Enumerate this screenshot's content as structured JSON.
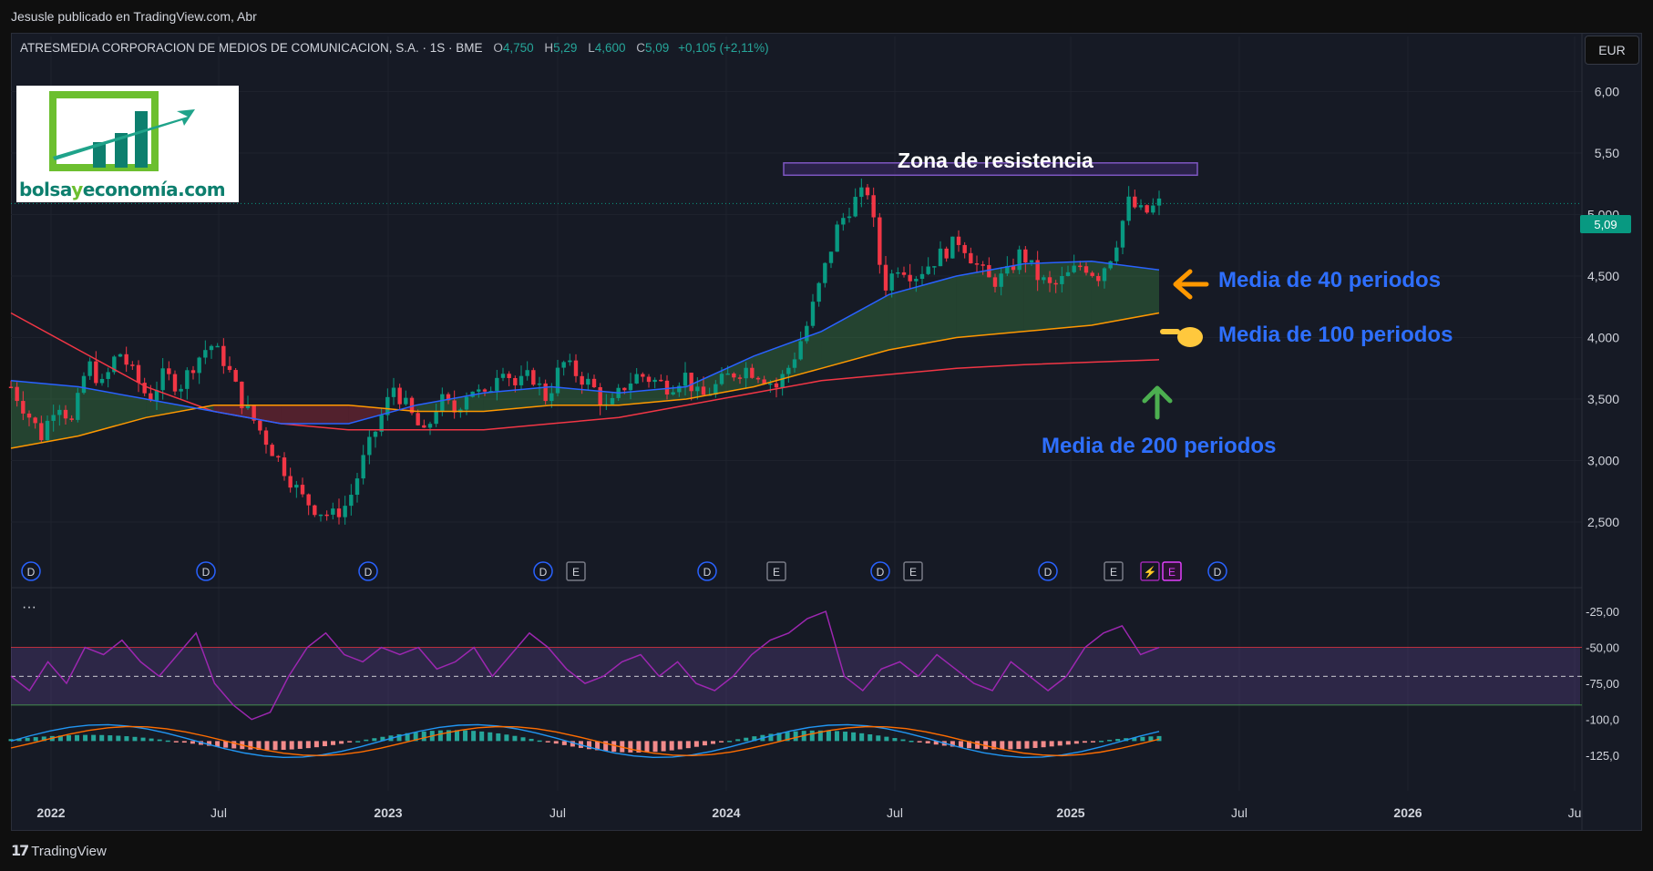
{
  "topline": "Jesusle publicado en TradingView.com, Abr",
  "legend": {
    "symbol": "ATRESMEDIA CORPORACION DE MEDIOS DE COMUNICACION, S.A. · 1S · BME",
    "o_key": "O",
    "o": "4,750",
    "h_key": "H",
    "h": "5,29",
    "l_key": "L",
    "l": "4,600",
    "c_key": "C",
    "c": "5,09",
    "change": "+0,105 (+2,11%)"
  },
  "currency": "EUR",
  "price_badge": "5,09",
  "logo": {
    "part1": "bolsa",
    "part2": "y",
    "part3": "economía",
    "part4": ".com"
  },
  "annotations": {
    "resistance": "Zona de resistencia",
    "ma40": "Media de 40 periodos",
    "ma100": "Media de 100 periodos",
    "ma200": "Media de 200 periodos"
  },
  "indicator_dots": "···",
  "brand": "TradingView",
  "colors": {
    "up": "#089981",
    "down": "#f23645",
    "ma40": "#2962ff",
    "ma100": "#ff9800",
    "ma200": "#f23645",
    "rsi": "#9c27b0",
    "accent_blue": "#2e6fff"
  },
  "chart_data": {
    "type": "candlestick",
    "x_tick_labels": [
      "2022",
      "Jul",
      "2023",
      "Jul",
      "2024",
      "Jul",
      "2025",
      "Jul",
      "2026",
      "Ju"
    ],
    "price_axis_labels": [
      "6,00",
      "5,50",
      "5,000",
      "4,500",
      "4,000",
      "3,500",
      "3,000",
      "2,500"
    ],
    "ylim": [
      2.3,
      6.3
    ],
    "last_price": 5.09,
    "series": [
      {
        "name": "Media de 40 periodos"
      },
      {
        "name": "Media de 100 periodos"
      },
      {
        "name": "Media de 200 periodos"
      }
    ],
    "price_path": [
      3.6,
      3.4,
      3.2,
      3.5,
      3.3,
      3.8,
      3.6,
      3.9,
      3.7,
      3.5,
      3.7,
      3.6,
      3.8,
      3.95,
      3.8,
      3.5,
      3.3,
      3.1,
      2.9,
      2.7,
      2.6,
      2.55,
      2.65,
      3.0,
      3.3,
      3.6,
      3.4,
      3.2,
      3.5,
      3.4,
      3.6,
      3.5,
      3.8,
      3.6,
      3.7,
      3.5,
      3.8,
      3.7,
      3.6,
      3.4,
      3.6,
      3.7,
      3.65,
      3.6,
      3.7,
      3.5,
      3.6,
      3.7,
      3.75,
      3.7,
      3.6,
      3.8,
      4.1,
      4.5,
      4.9,
      5.1,
      5.2,
      4.4,
      4.6,
      4.5,
      4.6,
      4.7,
      4.8,
      4.6,
      4.45,
      4.5,
      4.7,
      4.5,
      4.4,
      4.5,
      4.6,
      4.5,
      4.7,
      5.1,
      5.0,
      5.09
    ],
    "ma40_path": [
      3.65,
      3.6,
      3.5,
      3.4,
      3.3,
      3.3,
      3.45,
      3.55,
      3.6,
      3.55,
      3.6,
      3.85,
      4.05,
      4.35,
      4.5,
      4.6,
      4.62,
      4.55
    ],
    "ma100_path": [
      3.1,
      3.2,
      3.35,
      3.45,
      3.45,
      3.45,
      3.4,
      3.4,
      3.45,
      3.45,
      3.5,
      3.6,
      3.75,
      3.9,
      4.0,
      4.05,
      4.1,
      4.2
    ],
    "ma200_path": [
      4.2,
      3.9,
      3.6,
      3.4,
      3.3,
      3.25,
      3.25,
      3.25,
      3.3,
      3.35,
      3.45,
      3.55,
      3.65,
      3.7,
      3.75,
      3.78,
      3.8,
      3.82
    ],
    "resistance_zone": [
      5.32,
      5.42
    ],
    "event_markers": [
      "D",
      "D",
      "D",
      "D",
      "E",
      "D",
      "E",
      "D",
      "E",
      "D",
      "E",
      "⚡",
      "E",
      "D"
    ],
    "rsi_axis_labels": [
      "-25,00",
      "-50,00",
      "-75,00",
      "-100,0",
      "-125,0"
    ],
    "rsi_path": [
      -70,
      -80,
      -60,
      -75,
      -50,
      -55,
      -45,
      -60,
      -70,
      -55,
      -40,
      -75,
      -90,
      -100,
      -95,
      -70,
      -50,
      -40,
      -55,
      -60,
      -50,
      -55,
      -50,
      -65,
      -60,
      -50,
      -70,
      -55,
      -40,
      -50,
      -65,
      -75,
      -70,
      -60,
      -55,
      -70,
      -60,
      -75,
      -80,
      -70,
      -55,
      -45,
      -40,
      -30,
      -25,
      -70,
      -80,
      -65,
      -60,
      -70,
      -55,
      -65,
      -75,
      -80,
      -60,
      -70,
      -80,
      -70,
      -50,
      -40,
      -35,
      -55,
      -50
    ]
  }
}
